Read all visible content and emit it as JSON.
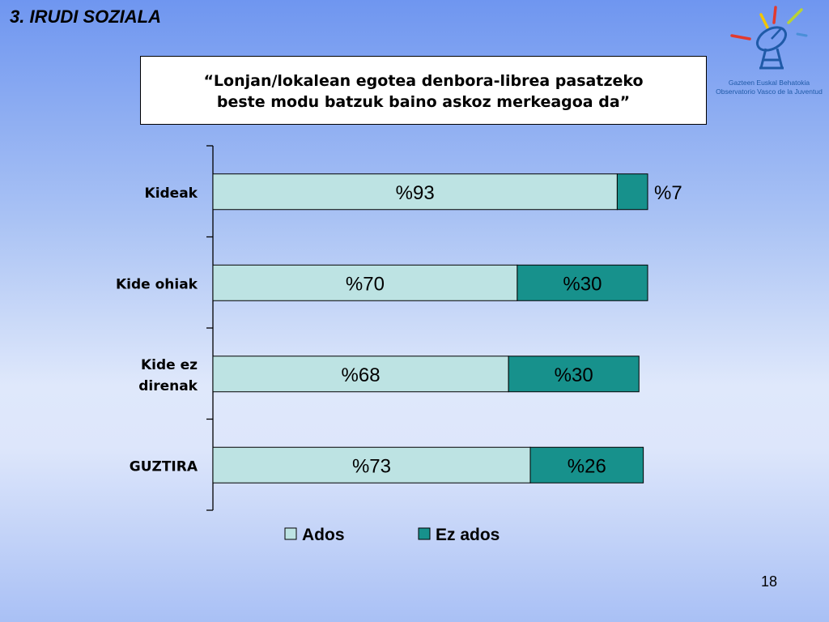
{
  "slide": {
    "title": "3. IRUDI SOZIALA",
    "page_number": "18"
  },
  "logo": {
    "line1": "Gazteen Euskal Behatokia",
    "line2": "Observatorio Vasco de la Juventud",
    "icon": "satellite-dish-icon"
  },
  "quote": {
    "line1": "“Lonjan/lokalean egotea denbora-librea pasatzeko",
    "line2": "beste modu batzuk baino askoz merkeagoa da”"
  },
  "chart_data": {
    "type": "bar",
    "orientation": "horizontal",
    "stacked": true,
    "categories": [
      "Kideak",
      "Kide ohiak",
      "Kide ez direnak",
      "GUZTIRA"
    ],
    "category_label_lines": [
      [
        "Kideak"
      ],
      [
        "Kide ohiak"
      ],
      [
        "Kide ez",
        "direnak"
      ],
      [
        "GUZTIRA"
      ]
    ],
    "series": [
      {
        "name": "Ados",
        "values": [
          93,
          70,
          68,
          73
        ],
        "labels": [
          "%93",
          "%70",
          "%68",
          "%73"
        ],
        "color": "#bde3e3"
      },
      {
        "name": "Ez ados",
        "values": [
          7,
          30,
          30,
          26
        ],
        "labels": [
          "%7",
          "%30",
          "%30",
          "%26"
        ],
        "color": "#17918c"
      }
    ],
    "xlim": [
      0,
      100
    ],
    "legend_position": "bottom",
    "grid": false
  }
}
